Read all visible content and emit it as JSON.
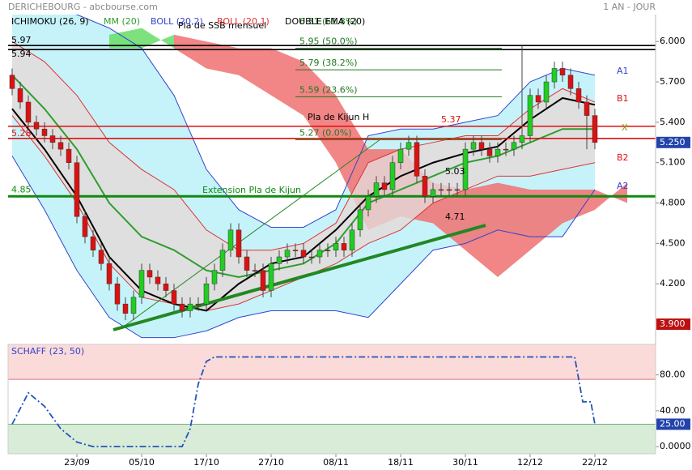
{
  "chart_data": [
    {
      "type": "candlestick",
      "title": "DERICHEBOURG - abcbourse.com",
      "period": "1 AN - JOUR",
      "xlim": [
        -0.5,
        79.5
      ],
      "ylim": [
        3.78,
        6.2
      ],
      "yticks": [
        {
          "value": 6,
          "label": "6.000"
        },
        {
          "value": 5.7,
          "label": "5.700"
        },
        {
          "value": 5.4,
          "label": "5.400"
        },
        {
          "value": 5.1,
          "label": "5.100"
        },
        {
          "value": 4.8,
          "label": "4.800"
        },
        {
          "value": 4.5,
          "label": "4.500"
        },
        {
          "value": 4.2,
          "label": "4.200"
        }
      ],
      "last": {
        "value": 5.25,
        "label": "5.250"
      },
      "low_marker": {
        "value": 3.9,
        "label": "3.900"
      },
      "price": {
        "up_color": "#22cc22",
        "down_color": "#dd1111",
        "open": [
          5.75,
          5.65,
          5.55,
          5.4,
          5.35,
          5.3,
          5.25,
          5.2,
          5.1,
          4.7,
          4.55,
          4.45,
          4.35,
          4.2,
          4.05,
          3.98,
          4.1,
          4.3,
          4.25,
          4.2,
          4.15,
          4.05,
          4.0,
          4.05,
          4.05,
          4.2,
          4.3,
          4.45,
          4.6,
          4.4,
          4.3,
          4.3,
          4.15,
          4.35,
          4.4,
          4.45,
          4.45,
          4.4,
          4.4,
          4.45,
          4.45,
          4.5,
          4.45,
          4.6,
          4.75,
          4.85,
          4.95,
          4.9,
          5.1,
          5.2,
          5.25,
          5.0,
          4.85,
          4.9,
          4.9,
          4.9,
          4.9,
          5.2,
          5.25,
          5.2,
          5.15,
          5.2,
          5.2,
          5.25,
          5.3,
          5.6,
          5.55,
          5.7,
          5.8,
          5.75,
          5.65,
          5.55,
          5.45
        ],
        "high": [
          5.8,
          5.7,
          5.6,
          5.45,
          5.4,
          5.35,
          5.3,
          5.25,
          5.15,
          4.75,
          4.6,
          4.5,
          4.4,
          4.25,
          4.1,
          4.15,
          4.35,
          4.35,
          4.3,
          4.25,
          4.2,
          4.1,
          4.1,
          4.1,
          4.25,
          4.35,
          4.5,
          4.65,
          4.65,
          4.45,
          4.35,
          4.35,
          4.4,
          4.45,
          4.5,
          4.5,
          4.5,
          4.45,
          4.5,
          4.5,
          4.55,
          4.55,
          4.65,
          4.8,
          4.9,
          5.0,
          5.0,
          5.15,
          5.25,
          5.3,
          5.3,
          5.05,
          4.95,
          4.95,
          4.95,
          4.95,
          5.25,
          5.3,
          5.3,
          5.25,
          5.25,
          5.25,
          5.3,
          5.97,
          5.65,
          5.65,
          5.75,
          5.85,
          5.85,
          5.8,
          5.7,
          5.6,
          5.5
        ],
        "low": [
          5.6,
          5.5,
          5.35,
          5.3,
          5.25,
          5.2,
          5.15,
          5.05,
          4.65,
          4.5,
          4.4,
          4.3,
          4.15,
          4.0,
          3.93,
          3.93,
          4.05,
          4.2,
          4.15,
          4.1,
          4.0,
          3.95,
          3.95,
          4.0,
          4.0,
          4.15,
          4.25,
          4.4,
          4.35,
          4.25,
          4.25,
          4.1,
          4.1,
          4.3,
          4.35,
          4.4,
          4.35,
          4.35,
          4.35,
          4.4,
          4.4,
          4.4,
          4.4,
          4.55,
          4.7,
          4.8,
          4.85,
          4.85,
          5.05,
          5.15,
          4.95,
          4.8,
          4.8,
          4.85,
          4.85,
          4.85,
          4.85,
          5.15,
          5.15,
          5.1,
          5.1,
          5.15,
          5.15,
          5.2,
          5.25,
          5.5,
          5.5,
          5.65,
          5.7,
          5.6,
          5.5,
          5.2,
          5.2
        ],
        "close": [
          5.65,
          5.55,
          5.4,
          5.35,
          5.3,
          5.25,
          5.2,
          5.1,
          4.7,
          4.55,
          4.45,
          4.35,
          4.2,
          4.05,
          3.98,
          4.1,
          4.3,
          4.25,
          4.2,
          4.15,
          4.05,
          4.0,
          4.05,
          4.05,
          4.2,
          4.3,
          4.45,
          4.6,
          4.4,
          4.3,
          4.3,
          4.15,
          4.35,
          4.4,
          4.45,
          4.45,
          4.4,
          4.4,
          4.45,
          4.45,
          4.5,
          4.45,
          4.6,
          4.75,
          4.85,
          4.95,
          4.9,
          5.1,
          5.2,
          5.25,
          5.0,
          4.85,
          4.9,
          4.9,
          4.9,
          4.9,
          5.2,
          5.25,
          5.2,
          5.15,
          5.2,
          5.2,
          5.25,
          5.3,
          5.6,
          5.55,
          5.7,
          5.8,
          5.75,
          5.65,
          5.55,
          5.45,
          5.25
        ]
      },
      "overlay_x": [
        0,
        4,
        8,
        12,
        16,
        20,
        24,
        28,
        32,
        36,
        40,
        44,
        48,
        52,
        56,
        60,
        64,
        68,
        72
      ],
      "ichimoku": {
        "name": "ICHIMOKU (26, 9)",
        "bull_color": "#66dd66",
        "bear_color": "#f07070",
        "x": [
          12,
          16,
          20,
          24,
          28,
          32,
          36,
          40,
          44,
          48,
          52,
          56,
          60,
          64,
          68,
          72,
          76
        ],
        "ssa": [
          6.05,
          6.1,
          5.95,
          5.8,
          5.75,
          5.6,
          5.45,
          5.1,
          4.6,
          4.7,
          4.65,
          4.45,
          4.25,
          4.45,
          4.65,
          4.75,
          4.95
        ],
        "ssb": [
          5.95,
          5.95,
          6.05,
          6.0,
          5.95,
          5.95,
          5.85,
          5.6,
          5.2,
          5.2,
          4.95,
          4.9,
          4.95,
          4.9,
          4.9,
          4.9,
          4.8
        ]
      },
      "mm": {
        "name": "MM (20)",
        "color": "#2e9e2e",
        "values": [
          5.75,
          5.5,
          5.2,
          4.8,
          4.55,
          4.45,
          4.3,
          4.25,
          4.3,
          4.35,
          4.5,
          4.8,
          4.9,
          5.0,
          5.1,
          5.15,
          5.25,
          5.35,
          5.35
        ]
      },
      "boll2": {
        "name": "BOLL (20,2)",
        "color": "#3344cc",
        "fill": "#c6f3fa",
        "upper": [
          6.25,
          6.25,
          6.2,
          6.1,
          5.95,
          5.6,
          5.05,
          4.75,
          4.62,
          4.62,
          4.75,
          5.3,
          5.35,
          5.35,
          5.4,
          5.45,
          5.7,
          5.8,
          5.75
        ],
        "lower": [
          5.15,
          4.75,
          4.3,
          3.95,
          3.8,
          3.8,
          3.85,
          3.95,
          4.0,
          4.0,
          4.0,
          3.95,
          4.2,
          4.45,
          4.5,
          4.6,
          4.55,
          4.55,
          4.9
        ]
      },
      "boll1": {
        "name": "BOLL (20,1)",
        "color": "#dd3333",
        "fill": "#e6d9d9",
        "upper": [
          6.0,
          5.85,
          5.6,
          5.25,
          5.05,
          4.9,
          4.6,
          4.45,
          4.45,
          4.5,
          4.65,
          5.1,
          5.2,
          5.25,
          5.3,
          5.3,
          5.5,
          5.65,
          5.55
        ],
        "lower": [
          5.45,
          5.15,
          4.8,
          4.35,
          4.1,
          4.05,
          4.0,
          4.05,
          4.15,
          4.25,
          4.35,
          4.5,
          4.6,
          4.8,
          4.9,
          5.0,
          5.0,
          5.05,
          5.1
        ]
      },
      "dema": {
        "name": "DOUBLE EMA (20)",
        "color": "#000000",
        "values": [
          5.5,
          5.2,
          4.85,
          4.4,
          4.15,
          4.05,
          4.0,
          4.2,
          4.35,
          4.4,
          4.6,
          4.85,
          5.0,
          5.1,
          5.17,
          5.22,
          5.42,
          5.58,
          5.53
        ]
      },
      "levels": [
        {
          "value": 5.97,
          "label": "5.97",
          "color": "#000000"
        },
        {
          "value": 5.94,
          "label": "5.94",
          "color": "#000000"
        },
        {
          "value": 5.37,
          "label": "5.37",
          "color": "#dd1111"
        },
        {
          "value": 5.28,
          "label": "5.28",
          "color": "#dd1111"
        },
        {
          "value": 4.85,
          "label": "4.85",
          "color": "#118811"
        }
      ],
      "fibonacci": {
        "color": "#227722",
        "levels": [
          {
            "value": 6.31,
            "label": "6.31 (61.8%)"
          },
          {
            "value": 5.95,
            "label": "5.95 (50.0%)"
          },
          {
            "value": 5.79,
            "label": "5.79 (38.2%)"
          },
          {
            "value": 5.59,
            "label": "5.59 (23.6%)"
          },
          {
            "value": 5.27,
            "label": "5.27 (0.0%)"
          }
        ]
      },
      "edge_labels": [
        "A1",
        "B1",
        "X",
        "B2",
        "A2"
      ],
      "annotations": [
        "Pla de SSB mensuel",
        "Pla de Kijun H",
        "Extension Pla de Kijun",
        "5.03",
        "4.71"
      ]
    },
    {
      "type": "line",
      "name": "SCHAFF (23, 50)",
      "color": "#2255bb",
      "xlim": [
        -0.5,
        79.5
      ],
      "ylim": [
        -8,
        114
      ],
      "xticks": [
        {
          "value": 8,
          "label": "23/09"
        },
        {
          "value": 16,
          "label": "05/10"
        },
        {
          "value": 24,
          "label": "17/10"
        },
        {
          "value": 32,
          "label": "27/10"
        },
        {
          "value": 40,
          "label": "08/11"
        },
        {
          "value": 48,
          "label": "18/11"
        },
        {
          "value": 56,
          "label": "30/11"
        },
        {
          "value": 64,
          "label": "12/12"
        },
        {
          "value": 72,
          "label": "22/12"
        }
      ],
      "yticks": [
        {
          "value": 80,
          "label": "80.00"
        },
        {
          "value": 40,
          "label": "40.00"
        },
        {
          "value": 0,
          "label": "0.0000"
        }
      ],
      "overbought": 75,
      "threshold": {
        "value": 25,
        "label": "25.00"
      },
      "x": [
        0,
        2,
        4,
        6,
        8,
        10,
        21,
        22,
        23,
        24,
        25,
        69.5,
        70.5,
        71.5,
        72
      ],
      "values": [
        25,
        60,
        45,
        20,
        5,
        0,
        0,
        20,
        70,
        95,
        100,
        100,
        50,
        50,
        25
      ]
    }
  ]
}
